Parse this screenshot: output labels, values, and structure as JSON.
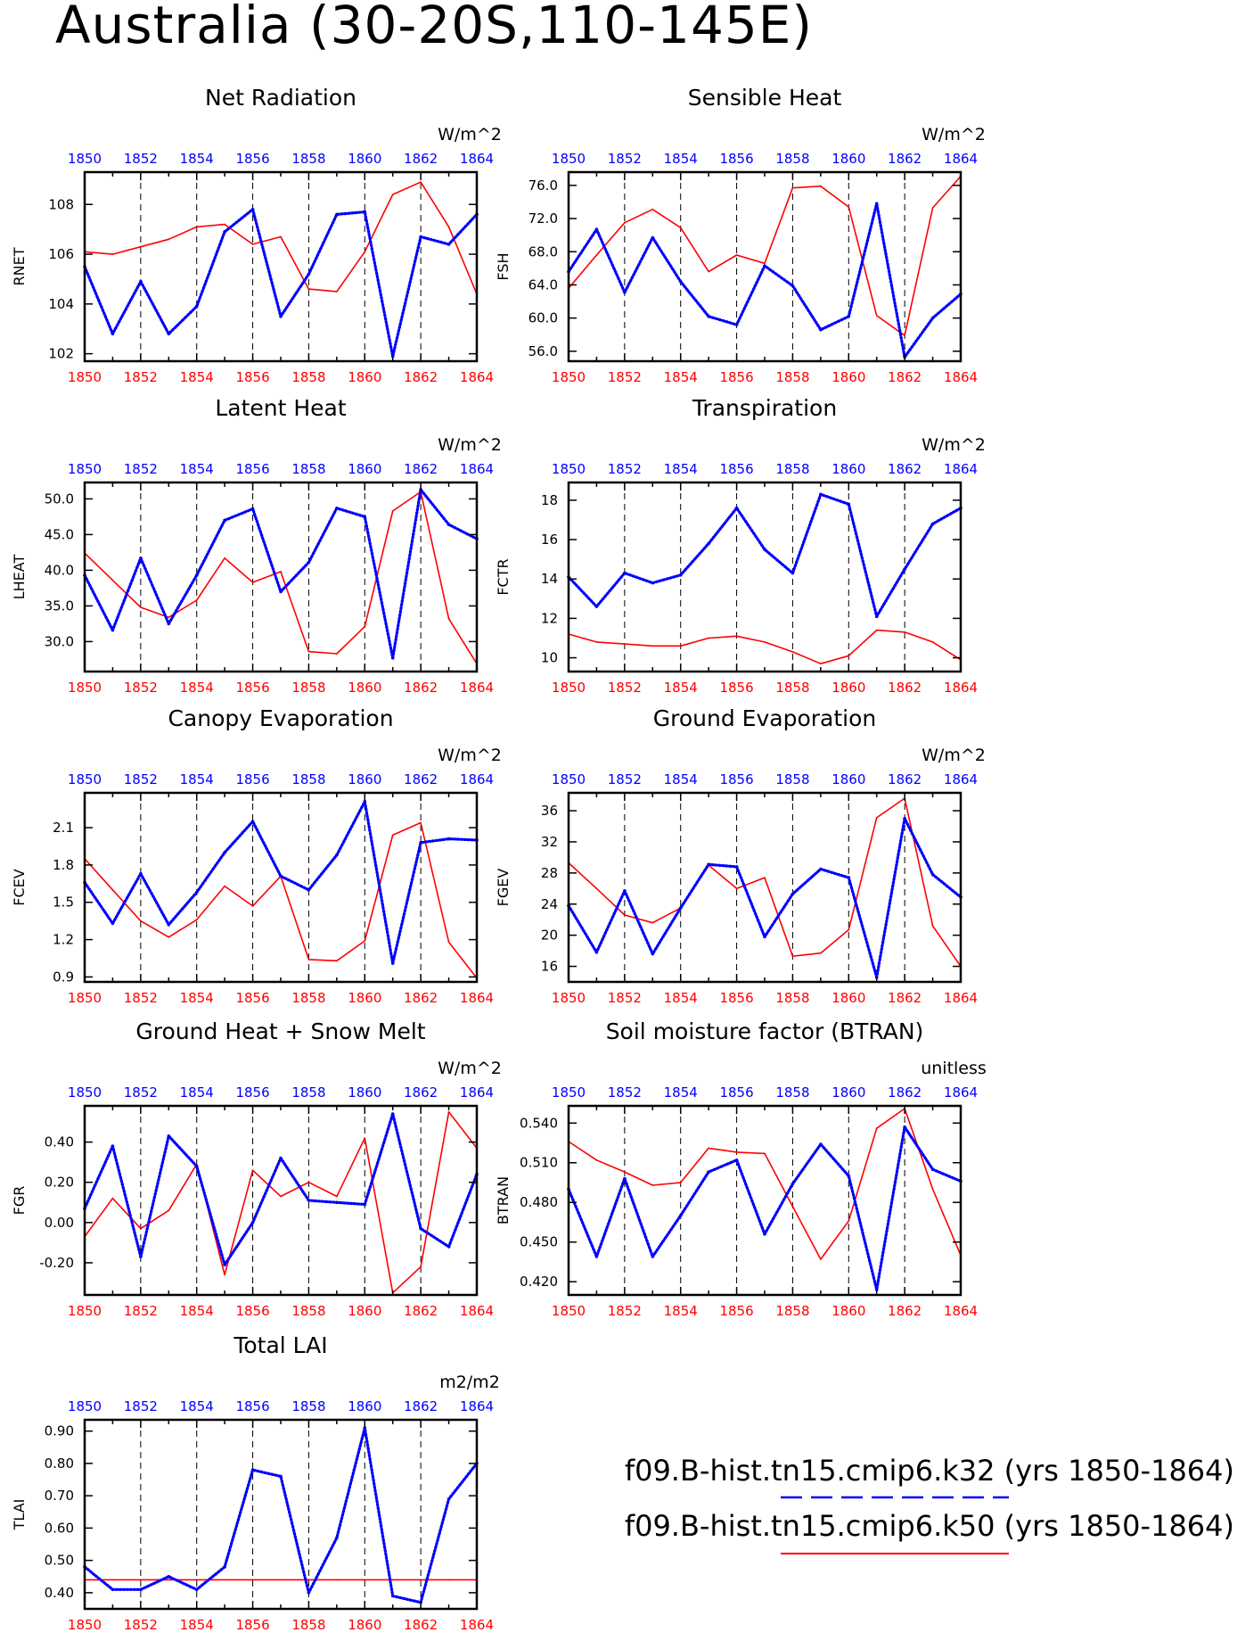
{
  "figure": {
    "title": "Australia (30-20S,110-145E)",
    "legend": [
      {
        "label": "f09.B-hist.tn15.cmip6.k32 (yrs 1850-1864)",
        "color": "#0000ff",
        "style": "dashed"
      },
      {
        "label": "f09.B-hist.tn15.cmip6.k50 (yrs 1850-1864)",
        "color": "#ff0000",
        "style": "solid"
      }
    ],
    "colors": {
      "k32": "#0000ff",
      "k50": "#ff0000",
      "axis": "#000000"
    }
  },
  "chart_data": [
    {
      "type": "line",
      "title": "Net Radiation",
      "ylabel": "RNET",
      "units": "W/m^2",
      "x": [
        1850,
        1851,
        1852,
        1853,
        1854,
        1855,
        1856,
        1857,
        1858,
        1859,
        1860,
        1861,
        1862,
        1863,
        1864
      ],
      "xticks": [
        1850,
        1852,
        1854,
        1856,
        1858,
        1860,
        1862,
        1864
      ],
      "ylim": [
        101.7,
        109.3
      ],
      "yticks": [
        102,
        104,
        106,
        108
      ],
      "ytick_labels": [
        "102",
        "104",
        "106",
        "108"
      ],
      "series": [
        {
          "name": "f09.B-hist.tn15.cmip6.k32",
          "values": [
            105.5,
            102.8,
            104.9,
            102.8,
            103.9,
            106.9,
            107.8,
            103.5,
            105.2,
            107.6,
            107.7,
            101.9,
            106.7,
            106.4,
            107.6
          ]
        },
        {
          "name": "f09.B-hist.tn15.cmip6.k50",
          "values": [
            106.1,
            106.0,
            106.3,
            106.6,
            107.1,
            107.2,
            106.4,
            106.7,
            104.6,
            104.5,
            106.1,
            108.4,
            108.9,
            107.1,
            104.4
          ]
        }
      ]
    },
    {
      "type": "line",
      "title": "Sensible Heat",
      "ylabel": "FSH",
      "units": "W/m^2",
      "x": [
        1850,
        1851,
        1852,
        1853,
        1854,
        1855,
        1856,
        1857,
        1858,
        1859,
        1860,
        1861,
        1862,
        1863,
        1864
      ],
      "xticks": [
        1850,
        1852,
        1854,
        1856,
        1858,
        1860,
        1862,
        1864
      ],
      "ylim": [
        54.8,
        77.6
      ],
      "yticks": [
        56,
        60,
        64,
        68,
        72,
        76
      ],
      "ytick_labels": [
        "56.0",
        "60.0",
        "64.0",
        "68.0",
        "72.0",
        "76.0"
      ],
      "series": [
        {
          "name": "f09.B-hist.tn15.cmip6.k32",
          "values": [
            65.6,
            70.7,
            63.1,
            69.7,
            64.4,
            60.2,
            59.2,
            66.3,
            63.9,
            58.6,
            60.2,
            73.8,
            55.3,
            60.0,
            62.9
          ]
        },
        {
          "name": "f09.B-hist.tn15.cmip6.k50",
          "values": [
            63.6,
            67.6,
            71.5,
            73.1,
            70.9,
            65.6,
            67.6,
            66.6,
            75.7,
            75.9,
            73.4,
            60.3,
            57.9,
            73.3,
            77.1
          ]
        }
      ]
    },
    {
      "type": "line",
      "title": "Latent Heat",
      "ylabel": "LHEAT",
      "units": "W/m^2",
      "x": [
        1850,
        1851,
        1852,
        1853,
        1854,
        1855,
        1856,
        1857,
        1858,
        1859,
        1860,
        1861,
        1862,
        1863,
        1864
      ],
      "xticks": [
        1850,
        1852,
        1854,
        1856,
        1858,
        1860,
        1862,
        1864
      ],
      "ylim": [
        25.8,
        52.3
      ],
      "yticks": [
        30,
        35,
        40,
        45,
        50
      ],
      "ytick_labels": [
        "30.0",
        "35.0",
        "40.0",
        "45.0",
        "50.0"
      ],
      "series": [
        {
          "name": "f09.B-hist.tn15.cmip6.k32",
          "values": [
            39.3,
            31.6,
            41.7,
            32.5,
            39.3,
            47.0,
            48.6,
            37.0,
            41.1,
            48.7,
            47.5,
            27.7,
            51.3,
            46.4,
            44.4
          ]
        },
        {
          "name": "f09.B-hist.tn15.cmip6.k50",
          "values": [
            42.4,
            38.6,
            34.8,
            33.4,
            35.8,
            41.7,
            38.3,
            39.8,
            28.6,
            28.3,
            32.1,
            48.3,
            51.0,
            33.2,
            26.9
          ]
        }
      ]
    },
    {
      "type": "line",
      "title": "Transpiration",
      "ylabel": "FCTR",
      "units": "W/m^2",
      "x": [
        1850,
        1851,
        1852,
        1853,
        1854,
        1855,
        1856,
        1857,
        1858,
        1859,
        1860,
        1861,
        1862,
        1863,
        1864
      ],
      "xticks": [
        1850,
        1852,
        1854,
        1856,
        1858,
        1860,
        1862,
        1864
      ],
      "ylim": [
        9.3,
        18.9
      ],
      "yticks": [
        10,
        12,
        14,
        16,
        18
      ],
      "ytick_labels": [
        "10",
        "12",
        "14",
        "16",
        "18"
      ],
      "series": [
        {
          "name": "f09.B-hist.tn15.cmip6.k32",
          "values": [
            14.1,
            12.6,
            14.3,
            13.8,
            14.2,
            15.8,
            17.6,
            15.5,
            14.3,
            18.3,
            17.8,
            12.1,
            14.5,
            16.8,
            17.6
          ]
        },
        {
          "name": "f09.B-hist.tn15.cmip6.k50",
          "values": [
            11.2,
            10.8,
            10.7,
            10.6,
            10.6,
            11.0,
            11.1,
            10.8,
            10.3,
            9.7,
            10.1,
            11.4,
            11.3,
            10.8,
            9.9
          ]
        }
      ]
    },
    {
      "type": "line",
      "title": "Canopy Evaporation",
      "ylabel": "FCEV",
      "units": "W/m^2",
      "x": [
        1850,
        1851,
        1852,
        1853,
        1854,
        1855,
        1856,
        1857,
        1858,
        1859,
        1860,
        1861,
        1862,
        1863,
        1864
      ],
      "xticks": [
        1850,
        1852,
        1854,
        1856,
        1858,
        1860,
        1862,
        1864
      ],
      "ylim": [
        0.86,
        2.38
      ],
      "yticks": [
        0.9,
        1.2,
        1.5,
        1.8,
        2.1
      ],
      "ytick_labels": [
        "0.9",
        "1.2",
        "1.5",
        "1.8",
        "2.1"
      ],
      "series": [
        {
          "name": "f09.B-hist.tn15.cmip6.k32",
          "values": [
            1.66,
            1.33,
            1.73,
            1.32,
            1.58,
            1.9,
            2.15,
            1.71,
            1.6,
            1.88,
            2.31,
            1.01,
            1.98,
            2.01,
            2.0
          ]
        },
        {
          "name": "f09.B-hist.tn15.cmip6.k50",
          "values": [
            1.85,
            1.6,
            1.35,
            1.22,
            1.36,
            1.63,
            1.47,
            1.71,
            1.04,
            1.03,
            1.19,
            2.04,
            2.14,
            1.18,
            0.89
          ]
        }
      ]
    },
    {
      "type": "line",
      "title": "Ground Evaporation",
      "ylabel": "FGEV",
      "units": "W/m^2",
      "x": [
        1850,
        1851,
        1852,
        1853,
        1854,
        1855,
        1856,
        1857,
        1858,
        1859,
        1860,
        1861,
        1862,
        1863,
        1864
      ],
      "xticks": [
        1850,
        1852,
        1854,
        1856,
        1858,
        1860,
        1862,
        1864
      ],
      "ylim": [
        14.0,
        38.3
      ],
      "yticks": [
        16,
        20,
        24,
        28,
        32,
        36
      ],
      "ytick_labels": [
        "16",
        "20",
        "24",
        "28",
        "32",
        "36"
      ],
      "series": [
        {
          "name": "f09.B-hist.tn15.cmip6.k32",
          "values": [
            23.8,
            17.8,
            25.7,
            17.6,
            23.5,
            29.1,
            28.8,
            19.8,
            25.3,
            28.5,
            27.4,
            14.6,
            35.0,
            27.8,
            24.9
          ]
        },
        {
          "name": "f09.B-hist.tn15.cmip6.k50",
          "values": [
            29.3,
            26.0,
            22.6,
            21.6,
            23.5,
            29.0,
            26.0,
            27.4,
            17.3,
            17.7,
            20.7,
            35.1,
            37.6,
            21.2,
            16.0
          ]
        }
      ]
    },
    {
      "type": "line",
      "title": "Ground Heat + Snow Melt",
      "ylabel": "FGR",
      "units": "W/m^2",
      "x": [
        1850,
        1851,
        1852,
        1853,
        1854,
        1855,
        1856,
        1857,
        1858,
        1859,
        1860,
        1861,
        1862,
        1863,
        1864
      ],
      "xticks": [
        1850,
        1852,
        1854,
        1856,
        1858,
        1860,
        1862,
        1864
      ],
      "ylim": [
        -0.36,
        0.58
      ],
      "yticks": [
        -0.2,
        0,
        0.2,
        0.4
      ],
      "ytick_labels": [
        "-0.20",
        "0.00",
        "0.20",
        "0.40"
      ],
      "series": [
        {
          "name": "f09.B-hist.tn15.cmip6.k32",
          "values": [
            0.07,
            0.38,
            -0.17,
            0.43,
            0.28,
            -0.21,
            0.0,
            0.32,
            0.11,
            0.1,
            0.09,
            0.54,
            -0.03,
            -0.12,
            0.24
          ]
        },
        {
          "name": "f09.B-hist.tn15.cmip6.k50",
          "values": [
            -0.07,
            0.12,
            -0.03,
            0.06,
            0.29,
            -0.26,
            0.26,
            0.13,
            0.2,
            0.13,
            0.42,
            -0.35,
            -0.22,
            0.55,
            0.37
          ]
        }
      ]
    },
    {
      "type": "line",
      "title": "Soil moisture factor (BTRAN)",
      "ylabel": "BTRAN",
      "units": "unitless",
      "x": [
        1850,
        1851,
        1852,
        1853,
        1854,
        1855,
        1856,
        1857,
        1858,
        1859,
        1860,
        1861,
        1862,
        1863,
        1864
      ],
      "xticks": [
        1850,
        1852,
        1854,
        1856,
        1858,
        1860,
        1862,
        1864
      ],
      "ylim": [
        0.41,
        0.553
      ],
      "yticks": [
        0.42,
        0.45,
        0.48,
        0.51,
        0.54
      ],
      "ytick_labels": [
        "0.420",
        "0.450",
        "0.480",
        "0.510",
        "0.540"
      ],
      "series": [
        {
          "name": "f09.B-hist.tn15.cmip6.k32",
          "values": [
            0.49,
            0.439,
            0.498,
            0.439,
            0.47,
            0.503,
            0.512,
            0.456,
            0.494,
            0.524,
            0.5,
            0.414,
            0.537,
            0.505,
            0.496
          ]
        },
        {
          "name": "f09.B-hist.tn15.cmip6.k50",
          "values": [
            0.526,
            0.512,
            0.503,
            0.493,
            0.495,
            0.521,
            0.518,
            0.517,
            0.477,
            0.437,
            0.466,
            0.536,
            0.551,
            0.49,
            0.44
          ]
        }
      ]
    },
    {
      "type": "line",
      "title": "Total LAI",
      "ylabel": "TLAI",
      "units": "m2/m2",
      "x": [
        1850,
        1851,
        1852,
        1853,
        1854,
        1855,
        1856,
        1857,
        1858,
        1859,
        1860,
        1861,
        1862,
        1863,
        1864
      ],
      "xticks": [
        1850,
        1852,
        1854,
        1856,
        1858,
        1860,
        1862,
        1864
      ],
      "ylim": [
        0.35,
        0.935
      ],
      "yticks": [
        0.4,
        0.5,
        0.6,
        0.7,
        0.8,
        0.9
      ],
      "ytick_labels": [
        "0.40",
        "0.50",
        "0.60",
        "0.70",
        "0.80",
        "0.90"
      ],
      "series": [
        {
          "name": "f09.B-hist.tn15.cmip6.k32",
          "values": [
            0.48,
            0.41,
            0.41,
            0.45,
            0.41,
            0.48,
            0.78,
            0.76,
            0.4,
            0.57,
            0.91,
            0.39,
            0.37,
            0.69,
            0.8
          ]
        },
        {
          "name": "f09.B-hist.tn15.cmip6.k50",
          "values": [
            0.44,
            0.44,
            0.44,
            0.44,
            0.44,
            0.44,
            0.44,
            0.44,
            0.44,
            0.44,
            0.44,
            0.44,
            0.44,
            0.44,
            0.44
          ]
        }
      ]
    }
  ]
}
